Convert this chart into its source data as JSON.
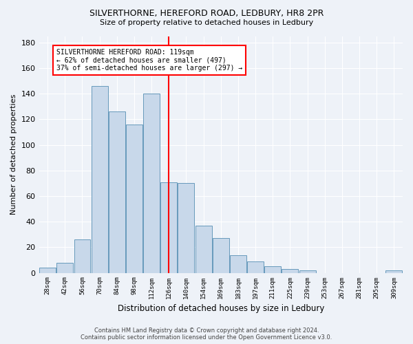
{
  "title1": "SILVERTHORNE, HEREFORD ROAD, LEDBURY, HR8 2PR",
  "title2": "Size of property relative to detached houses in Ledbury",
  "xlabel": "Distribution of detached houses by size in Ledbury",
  "ylabel": "Number of detached properties",
  "bar_labels": [
    "28sqm",
    "42sqm",
    "56sqm",
    "70sqm",
    "84sqm",
    "98sqm",
    "112sqm",
    "126sqm",
    "140sqm",
    "154sqm",
    "169sqm",
    "183sqm",
    "197sqm",
    "211sqm",
    "225sqm",
    "239sqm",
    "253sqm",
    "267sqm",
    "281sqm",
    "295sqm",
    "309sqm"
  ],
  "bar_values": [
    4,
    8,
    26,
    146,
    126,
    116,
    140,
    71,
    70,
    37,
    27,
    14,
    9,
    5,
    3,
    2,
    0,
    0,
    0,
    0,
    2
  ],
  "bar_color": "#c8d8ea",
  "bar_edge_color": "#6699bb",
  "vline_x": 7,
  "vline_color": "red",
  "annotation_text": "SILVERTHORNE HEREFORD ROAD: 119sqm\n← 62% of detached houses are smaller (497)\n37% of semi-detached houses are larger (297) →",
  "annotation_box_color": "white",
  "annotation_box_edge": "red",
  "ylim": [
    0,
    185
  ],
  "yticks": [
    0,
    20,
    40,
    60,
    80,
    100,
    120,
    140,
    160,
    180
  ],
  "footer1": "Contains HM Land Registry data © Crown copyright and database right 2024.",
  "footer2": "Contains public sector information licensed under the Open Government Licence v3.0.",
  "bg_color": "#eef2f8",
  "plot_bg_color": "#eef2f8"
}
